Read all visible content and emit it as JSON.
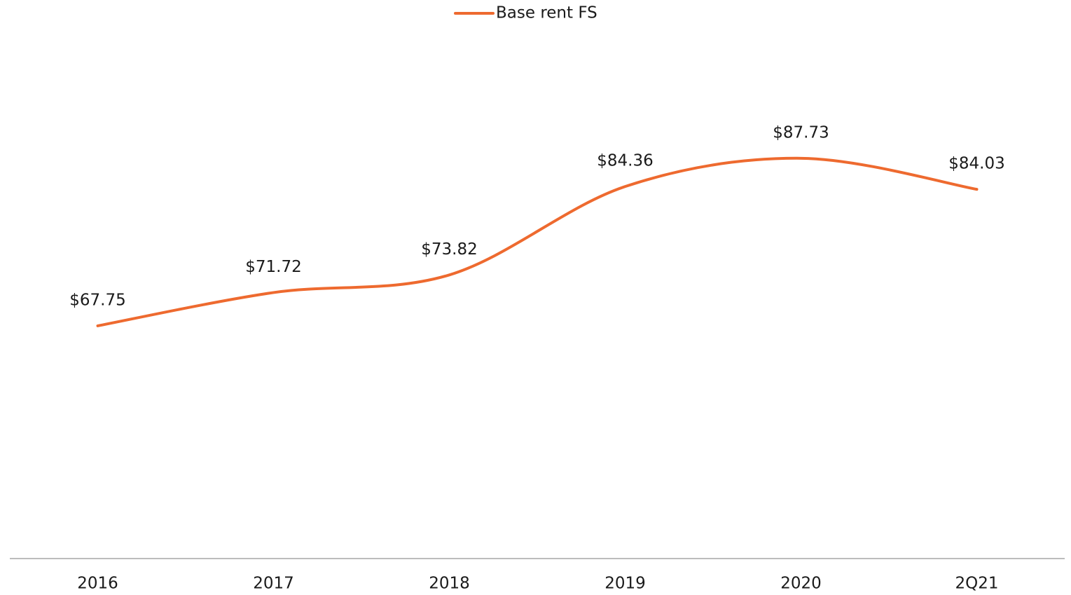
{
  "chart_data": {
    "type": "line",
    "categories": [
      "2016",
      "2017",
      "2018",
      "2019",
      "2020",
      "2Q21"
    ],
    "series": [
      {
        "name": "Base rent FS",
        "color": "#ee6a2f",
        "values": [
          67.75,
          71.72,
          73.82,
          84.36,
          87.73,
          84.03
        ],
        "value_labels": [
          "$67.75",
          "$71.72",
          "$73.82",
          "$84.36",
          "$87.73",
          "$84.03"
        ]
      }
    ],
    "ylim": [
      40,
      100
    ],
    "legend": "top"
  }
}
